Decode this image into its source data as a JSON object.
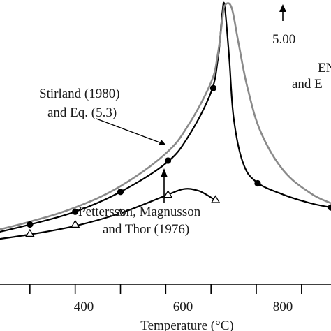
{
  "chart_data": {
    "type": "line",
    "x_axis": {
      "label": "Temperature (°C)",
      "ticks": [
        400,
        600,
        800
      ],
      "minor_ticks": [
        300,
        500,
        700,
        900
      ],
      "range": [
        200,
        965
      ]
    },
    "y_axis": {
      "label": "",
      "range": [
        0.0,
        1.0
      ],
      "note": "y expressed as relative position (unlabeled axis in crop)"
    },
    "colors": {
      "black": "#000000",
      "gray": "#8a8a8a"
    },
    "series": [
      {
        "color": "#000000",
        "marker": "circle",
        "x": [
          200,
          300,
          400,
          500,
          600,
          650,
          700,
          715,
          720,
          725,
          730,
          740,
          750,
          770,
          800,
          860,
          920,
          965
        ],
        "y": [
          0.172,
          0.21,
          0.255,
          0.325,
          0.425,
          0.52,
          0.675,
          0.79,
          0.865,
          0.955,
          0.98,
          0.8,
          0.585,
          0.43,
          0.36,
          0.315,
          0.285,
          0.27
        ],
        "marker_points": [
          [
            300,
            0.21
          ],
          [
            400,
            0.255
          ],
          [
            500,
            0.325
          ],
          [
            605,
            0.435
          ],
          [
            705,
            0.69
          ],
          [
            803,
            0.355
          ],
          [
            965,
            0.27
          ]
        ]
      },
      {
        "color": "#8a8a8a",
        "marker": "none",
        "x": [
          200,
          300,
          400,
          500,
          600,
          650,
          700,
          715,
          725,
          730,
          745,
          760,
          780,
          810,
          860,
          920,
          965
        ],
        "y": [
          0.18,
          0.22,
          0.27,
          0.345,
          0.46,
          0.56,
          0.71,
          0.81,
          0.93,
          0.98,
          0.975,
          0.855,
          0.695,
          0.535,
          0.4,
          0.32,
          0.285
        ]
      },
      {
        "color": "#000000",
        "marker": "triangle",
        "x": [
          200,
          300,
          400,
          500,
          600,
          640,
          670,
          690,
          710
        ],
        "y": [
          0.152,
          0.175,
          0.205,
          0.25,
          0.312,
          0.335,
          0.33,
          0.315,
          0.295
        ],
        "marker_points": [
          [
            300,
            0.178
          ],
          [
            400,
            0.21
          ],
          [
            500,
            0.25
          ],
          [
            605,
            0.315
          ],
          [
            710,
            0.297
          ]
        ]
      }
    ],
    "annotations": [
      {
        "lines": [
          "Stirland (1980)",
          "and Eq. (5.3)"
        ],
        "position": "upper-left"
      },
      {
        "lines": [
          "Pettersson, Magnusson",
          "and Thor (1976)"
        ],
        "position": "lower-middle"
      },
      {
        "lines": [
          "5.00"
        ],
        "position": "top-center"
      },
      {
        "lines": [
          "EN",
          "and E"
        ],
        "position": "right-edge-clipped"
      }
    ]
  }
}
